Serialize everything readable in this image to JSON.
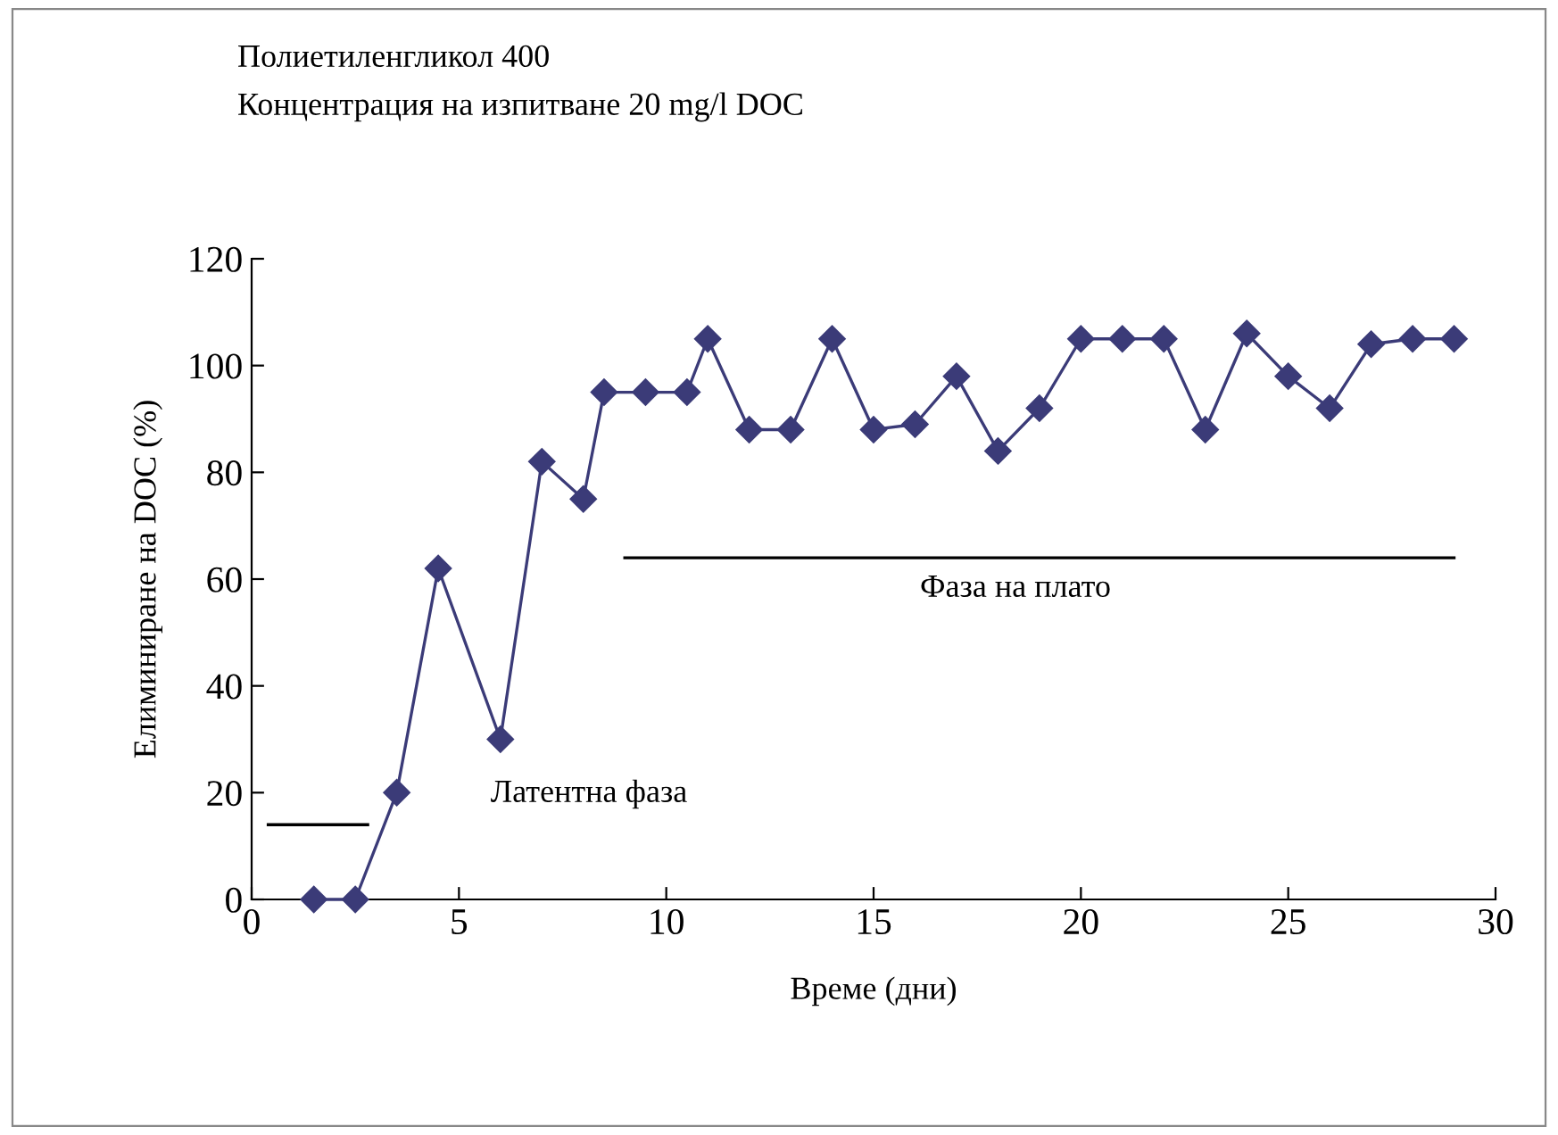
{
  "chart_data": {
    "type": "line",
    "title": "Полиетиленгликол 400",
    "subtitle": "Концентрация на изпитване 20 mg/l DOC",
    "xlabel": "Време (дни)",
    "ylabel": "Елиминиране на DOC (%)",
    "xlim": [
      0,
      30
    ],
    "xticks": [
      0,
      5,
      10,
      15,
      20,
      25,
      30
    ],
    "ylim": [
      0,
      120
    ],
    "yticks": [
      0,
      20,
      40,
      60,
      80,
      100,
      120
    ],
    "grid": false,
    "legend": false,
    "marker": "diamond",
    "line_style": "solid",
    "series": [
      {
        "color": "#3b3b78",
        "x": [
          1.5,
          2.5,
          3.5,
          4.5,
          6,
          7,
          8,
          8.5,
          9.5,
          10.5,
          11,
          12,
          13,
          14,
          15,
          16,
          17,
          18,
          19,
          20,
          21,
          22,
          23,
          24,
          25,
          26,
          27,
          28,
          29
        ],
        "values": [
          0,
          0,
          20,
          62,
          30,
          82,
          75,
          95,
          95,
          95,
          105,
          88,
          88,
          105,
          88,
          89,
          98,
          84,
          92,
          105,
          105,
          105,
          88,
          106,
          98,
          92,
          104,
          105,
          105
        ]
      },
      {
        "type": "line",
        "color": "#000000",
        "marker": "none",
        "x": [
          0.4,
          2.8
        ],
        "values": [
          14,
          14
        ]
      },
      {
        "type": "line",
        "color": "#000000",
        "marker": "none",
        "x": [
          9,
          29
        ],
        "values": [
          64,
          64
        ]
      }
    ],
    "annotations": [
      "Латентна фаза",
      "Фаза на плато"
    ]
  }
}
